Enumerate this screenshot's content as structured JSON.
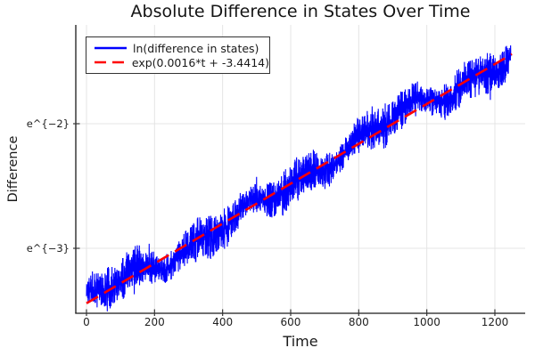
{
  "chart_data": {
    "type": "line",
    "title": "Absolute Difference in States Over Time",
    "xlabel": "Time",
    "ylabel": "Difference",
    "x_ticks": {
      "values": [
        0,
        200,
        400,
        600,
        800,
        1000,
        1200
      ],
      "labels": [
        "0",
        "200",
        "400",
        "600",
        "800",
        "1000",
        "1200"
      ]
    },
    "y_ticks": {
      "scale": "log (natural)",
      "values_ln": [
        -2,
        -3
      ],
      "labels": [
        "e^{−2}",
        "e^{−3}"
      ]
    },
    "xlim": [
      -31.4,
      1289.1
    ],
    "ylim_ln": [
      -3.5214,
      -1.2071
    ],
    "grid": true,
    "legend_position": "top-left",
    "series": [
      {
        "name": "ln(difference in states)",
        "color": "#0000ff",
        "style": "solid",
        "stroke_width": 1.1,
        "t_range": [
          0,
          1247
        ],
        "trend": {
          "slope": 0.0016,
          "intercept": -3.4414
        },
        "trend_points_t_ln": [
          [
            0,
            -3.44
          ],
          [
            100,
            -3.28
          ],
          [
            200,
            -3.12
          ],
          [
            300,
            -2.96
          ],
          [
            400,
            -2.8
          ],
          [
            500,
            -2.64
          ],
          [
            600,
            -2.48
          ],
          [
            700,
            -2.32
          ],
          [
            800,
            -2.16
          ],
          [
            900,
            -2.0
          ],
          [
            1000,
            -1.84
          ],
          [
            1100,
            -1.68
          ],
          [
            1200,
            -1.52
          ],
          [
            1247,
            -1.45
          ]
        ],
        "noise": {
          "seed": 11,
          "dt": 0.6,
          "band_halfwidth_ln": 0.12,
          "meander_terms": [
            [
              0.05,
              26,
              2.1
            ],
            [
              0.04,
              67,
              0.7
            ],
            [
              0.03,
              147,
              1.9
            ]
          ],
          "envelope_base": 0.05,
          "envelope_terms": [
            [
              0.05,
              83,
              0.4
            ],
            [
              0.028,
              13.7,
              0
            ]
          ],
          "zigzag_factor": 0.6,
          "random_factor": 1.7,
          "spike_prob": 0.012,
          "spike_amp": 0.3
        }
      },
      {
        "name": "exp(0.0016*t + -3.4414)",
        "color": "#ff0000",
        "style": "dashed",
        "stroke_width": 2.6,
        "dash": "15 8",
        "slope": 0.0016,
        "intercept": -3.4414,
        "t_range": [
          0,
          1250
        ]
      }
    ],
    "colors": {
      "background": "#ffffff",
      "grid": "#e4e4e4",
      "spine": "#1a1a1a",
      "tick": "#363636",
      "text": "#1a1a1a",
      "series_blue": "#0000ff",
      "series_red": "#ff0000"
    }
  }
}
